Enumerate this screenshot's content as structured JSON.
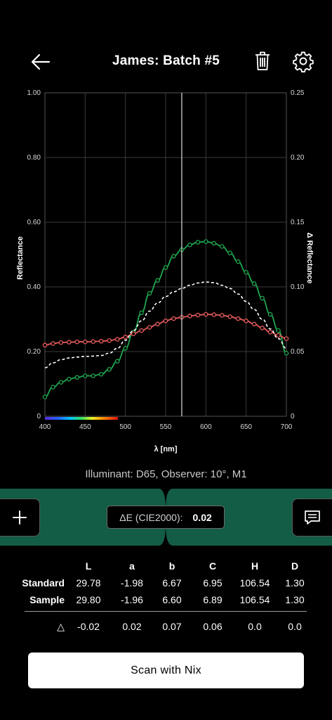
{
  "header": {
    "title": "James: Batch #5"
  },
  "chart_data": {
    "type": "line",
    "xlabel": "λ [nm]",
    "ylabel": "Reflectance",
    "y2label": "Δ Reflectance",
    "xlim": [
      400,
      700
    ],
    "ylim": [
      0,
      1.0
    ],
    "y2lim": [
      0,
      0.25
    ],
    "x_ticks": [
      "400",
      "450",
      "500",
      "550",
      "600",
      "650",
      "700"
    ],
    "y_ticks": [
      "0",
      "0.20",
      "0.40",
      "0.60",
      "0.80",
      "1.00"
    ],
    "y2_ticks": [
      "0",
      "0.05",
      "0.10",
      "0.15",
      "0.20",
      "0.25"
    ],
    "cursor_x": 570,
    "grid": true,
    "x": [
      400,
      410,
      420,
      430,
      440,
      450,
      460,
      470,
      480,
      490,
      500,
      510,
      520,
      530,
      540,
      550,
      560,
      570,
      580,
      590,
      600,
      610,
      620,
      630,
      640,
      650,
      660,
      670,
      680,
      690,
      700
    ],
    "series": [
      {
        "color": "#1fa84f",
        "values": [
          0.06,
          0.09,
          0.105,
          0.115,
          0.12,
          0.125,
          0.125,
          0.13,
          0.145,
          0.17,
          0.21,
          0.26,
          0.32,
          0.38,
          0.42,
          0.46,
          0.495,
          0.515,
          0.53,
          0.538,
          0.54,
          0.535,
          0.525,
          0.505,
          0.478,
          0.445,
          0.41,
          0.365,
          0.315,
          0.265,
          0.195
        ]
      },
      {
        "color": "#e85c5c",
        "values": [
          0.22,
          0.225,
          0.228,
          0.229,
          0.23,
          0.23,
          0.231,
          0.232,
          0.234,
          0.238,
          0.245,
          0.255,
          0.265,
          0.275,
          0.285,
          0.295,
          0.302,
          0.306,
          0.31,
          0.313,
          0.315,
          0.314,
          0.312,
          0.308,
          0.302,
          0.295,
          0.285,
          0.273,
          0.26,
          0.25,
          0.24
        ]
      },
      {
        "color": "#ffffff",
        "dashed": true,
        "values": [
          0.15,
          0.165,
          0.175,
          0.18,
          0.183,
          0.185,
          0.186,
          0.188,
          0.195,
          0.21,
          0.235,
          0.265,
          0.295,
          0.325,
          0.35,
          0.37,
          0.385,
          0.395,
          0.405,
          0.412,
          0.415,
          0.413,
          0.405,
          0.395,
          0.378,
          0.355,
          0.33,
          0.3,
          0.27,
          0.24,
          0.21
        ]
      }
    ]
  },
  "illuminant": "Illuminant: D65, Observer: 10°, M1",
  "delta_e": {
    "label": "ΔE (CIE2000):",
    "value": "0.02"
  },
  "table": {
    "headers": [
      "",
      "L",
      "a",
      "b",
      "C",
      "H",
      "D"
    ],
    "rows": [
      [
        "Standard",
        "29.78",
        "-1.98",
        "6.67",
        "6.95",
        "106.54",
        "1.30"
      ],
      [
        "Sample",
        "29.80",
        "-1.96",
        "6.60",
        "6.89",
        "106.54",
        "1.30"
      ]
    ],
    "delta_row": [
      "△",
      "-0.02",
      "0.02",
      "0.07",
      "0.06",
      "0.0",
      "0.0"
    ]
  },
  "scan_button": "Scan with Nix",
  "colors": {
    "accent": "#135c46",
    "background": "#000000"
  },
  "icons": {
    "back": "arrow-left-icon",
    "delete": "trash-icon",
    "settings": "gear-icon",
    "add": "plus-icon",
    "notes": "message-icon"
  }
}
